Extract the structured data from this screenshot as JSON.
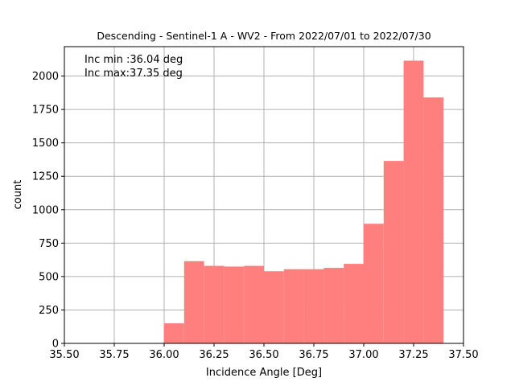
{
  "chart_data": {
    "type": "bar",
    "title": "Descending - Sentinel-1 A - WV2 - From 2022/07/01 to 2022/07/30",
    "xlabel": "Incidence Angle [Deg]",
    "ylabel": "count",
    "xlim": [
      35.5,
      37.5
    ],
    "ylim": [
      0,
      2220
    ],
    "grid": true,
    "bar_color": "#ff7f7f",
    "grid_color": "#b0b0b0",
    "bin_width": 0.1,
    "bins": [
      {
        "start": 36.0,
        "value": 150
      },
      {
        "start": 36.1,
        "value": 615
      },
      {
        "start": 36.2,
        "value": 580
      },
      {
        "start": 36.3,
        "value": 575
      },
      {
        "start": 36.4,
        "value": 580
      },
      {
        "start": 36.5,
        "value": 540
      },
      {
        "start": 36.6,
        "value": 555
      },
      {
        "start": 36.7,
        "value": 555
      },
      {
        "start": 36.8,
        "value": 565
      },
      {
        "start": 36.9,
        "value": 595
      },
      {
        "start": 37.0,
        "value": 895
      },
      {
        "start": 37.1,
        "value": 1365
      },
      {
        "start": 37.2,
        "value": 2115
      },
      {
        "start": 37.3,
        "value": 1840
      }
    ],
    "x_ticks": [
      "35.50",
      "35.75",
      "36.00",
      "36.25",
      "36.50",
      "36.75",
      "37.00",
      "37.25",
      "37.50"
    ],
    "x_tick_values": [
      35.5,
      35.75,
      36.0,
      36.25,
      36.5,
      36.75,
      37.0,
      37.25,
      37.5
    ],
    "y_ticks": [
      "0",
      "250",
      "500",
      "750",
      "1000",
      "1250",
      "1500",
      "1750",
      "2000"
    ],
    "y_tick_values": [
      0,
      250,
      500,
      750,
      1000,
      1250,
      1500,
      1750,
      2000
    ],
    "annotations": [
      "Inc min :36.04 deg",
      "Inc max:37.35 deg"
    ]
  }
}
